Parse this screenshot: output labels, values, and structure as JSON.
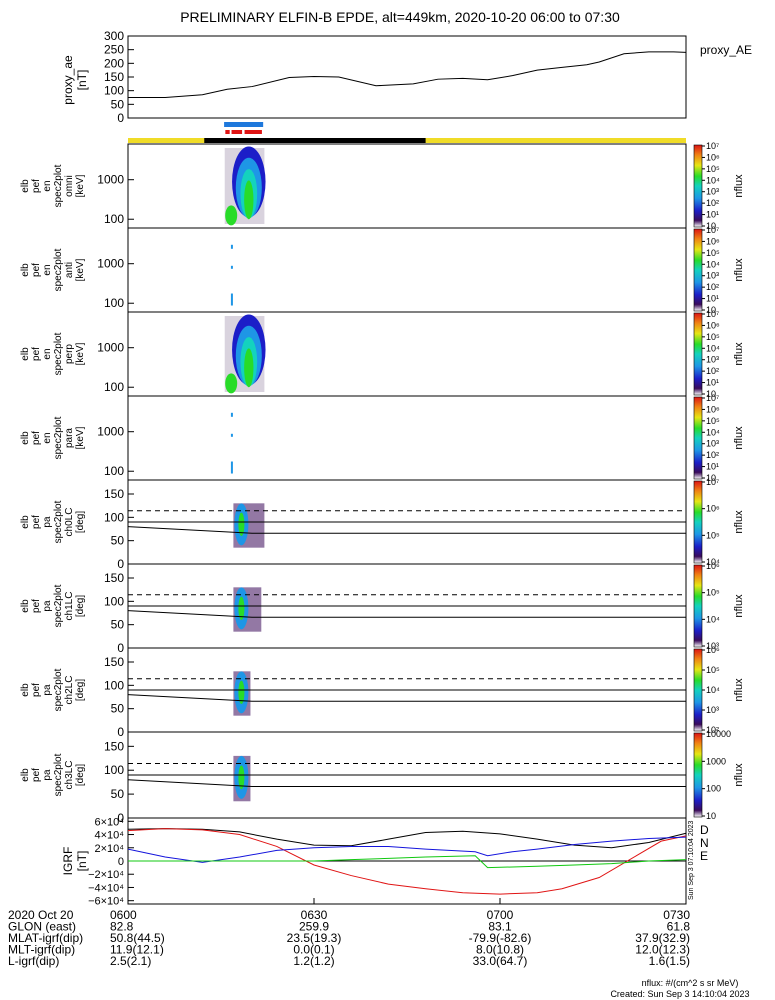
{
  "title": "PRELIMINARY ELFIN-B EPDE, alt=449km, 2020-10-20 06:00 to 07:30",
  "colors": {
    "band_yellow": "#f0dc28",
    "band_black": "#000000",
    "bar_blue": "#1e78dc",
    "bar_red": "#e01414",
    "grf_d": "#e01414",
    "grf_n": "#1414dc",
    "grf_e": "#10c810"
  },
  "chart_data": [
    {
      "type": "line",
      "name": "proxy_ae",
      "ylabel": [
        "proxy_ae",
        "[nT]"
      ],
      "legend": "proxy_AE",
      "ylim": [
        0,
        300
      ],
      "yticks": [
        "0",
        "50",
        "100",
        "150",
        "200",
        "250",
        "300"
      ],
      "x_minutes": [
        0,
        6,
        12,
        16,
        20,
        26,
        30,
        34,
        40,
        46,
        50,
        54,
        58,
        62,
        66,
        70,
        74,
        76,
        80,
        84,
        88,
        90
      ],
      "values": [
        75,
        75,
        85,
        105,
        115,
        148,
        152,
        150,
        118,
        125,
        142,
        145,
        140,
        155,
        175,
        185,
        195,
        205,
        235,
        242,
        242,
        240
      ]
    },
    {
      "type": "band",
      "name": "science-zone-bars",
      "blue_segment_min": [
        15.5,
        21.8
      ],
      "red_segments_min": [
        [
          15.7,
          16.4
        ],
        [
          16.7,
          18.4
        ],
        [
          18.8,
          21.6
        ]
      ],
      "black_segment_min": [
        12.3,
        48.0
      ]
    },
    {
      "type": "heatmap",
      "name": "en-omni",
      "ylabel": [
        "elb",
        "pef",
        "en",
        "spec2plot",
        "omni",
        "[keV]"
      ],
      "yscale": "log",
      "ylim": [
        60,
        8000
      ],
      "yticks": [
        "100",
        "1000"
      ],
      "time_window_min": [
        15.5,
        22.0
      ],
      "colorbar": {
        "label": "nflux",
        "ticks": [
          "10",
          "10¹",
          "10²",
          "10³",
          "10⁴",
          "10⁵",
          "10⁶",
          "10⁷"
        ]
      }
    },
    {
      "type": "heatmap",
      "name": "en-anti",
      "ylabel": [
        "elb",
        "pef",
        "en",
        "spec2plot",
        "anti",
        "[keV]"
      ],
      "yscale": "log",
      "ylim": [
        60,
        8000
      ],
      "yticks": [
        "100",
        "1000"
      ],
      "time_window_min": [
        16.0,
        17.0
      ],
      "colorbar": {
        "label": "nflux",
        "ticks": [
          "10",
          "10¹",
          "10²",
          "10³",
          "10⁴",
          "10⁵",
          "10⁶",
          "10⁷"
        ]
      }
    },
    {
      "type": "heatmap",
      "name": "en-perp",
      "ylabel": [
        "elb",
        "pef",
        "en",
        "spec2plot",
        "perp",
        "[keV]"
      ],
      "yscale": "log",
      "ylim": [
        60,
        8000
      ],
      "yticks": [
        "100",
        "1000"
      ],
      "time_window_min": [
        15.5,
        22.0
      ],
      "colorbar": {
        "label": "nflux",
        "ticks": [
          "10",
          "10¹",
          "10²",
          "10³",
          "10⁴",
          "10⁵",
          "10⁶",
          "10⁷"
        ]
      }
    },
    {
      "type": "heatmap",
      "name": "en-para",
      "ylabel": [
        "elb",
        "pef",
        "en",
        "spec2plot",
        "para",
        "[keV]"
      ],
      "yscale": "log",
      "ylim": [
        60,
        8000
      ],
      "yticks": [
        "100",
        "1000"
      ],
      "time_window_min": [
        16.0,
        17.0
      ],
      "colorbar": {
        "label": "nflux",
        "ticks": [
          "10",
          "10¹",
          "10²",
          "10³",
          "10⁴",
          "10⁵",
          "10⁶",
          "10⁷"
        ]
      }
    },
    {
      "type": "heatmap",
      "name": "pa-ch0",
      "ylabel": [
        "elb",
        "pef",
        "pa",
        "spec2plot",
        "ch0LC",
        "[deg]"
      ],
      "ylim": [
        0,
        180
      ],
      "yticks": [
        "0",
        "50",
        "100",
        "150"
      ],
      "dashed_line_deg": 114,
      "solid_line_deg": 90,
      "loss_cone_deg": [
        80,
        66
      ],
      "colorbar": {
        "label": "nflux",
        "ticks": [
          "10⁴",
          "10⁵",
          "10⁶",
          "10⁷"
        ]
      }
    },
    {
      "type": "heatmap",
      "name": "pa-ch1",
      "ylabel": [
        "elb",
        "pef",
        "pa",
        "spec2plot",
        "ch1LC",
        "[deg]"
      ],
      "ylim": [
        0,
        180
      ],
      "yticks": [
        "0",
        "50",
        "100",
        "150"
      ],
      "dashed_line_deg": 114,
      "solid_line_deg": 90,
      "loss_cone_deg": [
        80,
        66
      ],
      "colorbar": {
        "label": "nflux",
        "ticks": [
          "10³",
          "10⁴",
          "10⁵",
          "10⁶"
        ]
      }
    },
    {
      "type": "heatmap",
      "name": "pa-ch2",
      "ylabel": [
        "elb",
        "pef",
        "pa",
        "spec2plot",
        "ch2LC",
        "[deg]"
      ],
      "ylim": [
        0,
        180
      ],
      "yticks": [
        "0",
        "50",
        "100",
        "150"
      ],
      "dashed_line_deg": 114,
      "solid_line_deg": 90,
      "loss_cone_deg": [
        80,
        66
      ],
      "colorbar": {
        "label": "nflux",
        "ticks": [
          "10²",
          "10³",
          "10⁴",
          "10⁵",
          "10⁶"
        ]
      }
    },
    {
      "type": "heatmap",
      "name": "pa-ch3",
      "ylabel": [
        "elb",
        "pef",
        "pa",
        "spec2plot",
        "ch3LC",
        "[deg]"
      ],
      "ylim": [
        0,
        180
      ],
      "yticks": [
        "0",
        "50",
        "100",
        "150"
      ],
      "dashed_line_deg": 114,
      "solid_line_deg": 90,
      "loss_cone_deg": [
        80,
        66
      ],
      "colorbar": {
        "label": "nflux",
        "ticks": [
          "10",
          "100",
          "1000",
          "10000"
        ]
      }
    },
    {
      "type": "line",
      "name": "igrf",
      "ylabel": [
        "IGRF",
        "[nT]"
      ],
      "ylim": [
        -65000,
        65000
      ],
      "yticks": [
        "−6×10⁴",
        "−4×10⁴",
        "−2×10⁴",
        "0",
        "2×10⁴",
        "4×10⁴",
        "6×10⁴"
      ],
      "ytick_values": [
        -60000,
        -40000,
        -20000,
        0,
        20000,
        40000,
        60000
      ],
      "legend": [
        "D",
        "N",
        "E"
      ],
      "series": [
        {
          "name": "black",
          "x_minutes": [
            0,
            6,
            12,
            18,
            24,
            30,
            36,
            42,
            48,
            54,
            60,
            66,
            72,
            78,
            84,
            90
          ],
          "values": [
            48000,
            49000,
            48000,
            44000,
            33000,
            24000,
            23000,
            33000,
            43000,
            45000,
            41000,
            33000,
            24000,
            20000,
            28000,
            42000
          ]
        },
        {
          "name": "D",
          "x_minutes": [
            0,
            6,
            12,
            18,
            24,
            30,
            36,
            42,
            48,
            54,
            60,
            66,
            70,
            76,
            82,
            86,
            90
          ],
          "values": [
            46000,
            49000,
            47000,
            40000,
            22000,
            -6000,
            -22000,
            -35000,
            -42000,
            -48000,
            -50000,
            -48000,
            -42000,
            -25000,
            8000,
            30000,
            38000
          ]
        },
        {
          "name": "N",
          "x_minutes": [
            0,
            6,
            12,
            18,
            24,
            30,
            36,
            42,
            48,
            56,
            58,
            62,
            66,
            72,
            78,
            84,
            90
          ],
          "values": [
            18000,
            6000,
            -2000,
            6000,
            16000,
            20000,
            22000,
            22000,
            18000,
            14000,
            8000,
            14000,
            18000,
            25000,
            30000,
            34000,
            36000
          ]
        },
        {
          "name": "E",
          "x_minutes": [
            0,
            6,
            12,
            18,
            24,
            30,
            36,
            42,
            48,
            56,
            58,
            62,
            66,
            72,
            78,
            84,
            90
          ],
          "values": [
            0,
            0,
            0,
            0,
            0,
            0,
            2000,
            4000,
            6000,
            8000,
            -10000,
            -9000,
            -8000,
            -6000,
            -4000,
            0,
            2000
          ]
        }
      ],
      "side_stamp": "Sun Sep  3 07:10:04 2023"
    }
  ],
  "xaxis": {
    "tick_labels": [
      "0600",
      "0630",
      "0700",
      "0730"
    ],
    "rows": [
      {
        "label": "2020 Oct 20",
        "values": [
          "0600",
          "0630",
          "0700",
          "0730"
        ]
      },
      {
        "label": "GLON (east)",
        "values": [
          "82.8",
          "259.9",
          "83.1",
          "61.8"
        ]
      },
      {
        "label": "MLAT-igrf(dip)",
        "values": [
          "50.8(44.5)",
          "23.5(19.3)",
          "-79.9(-82.6)",
          "37.9(32.9)"
        ]
      },
      {
        "label": "MLT-igrf(dip)",
        "values": [
          "11.9(12.1)",
          "0.0(0.1)",
          "8.0(10.8)",
          "12.0(12.3)"
        ]
      },
      {
        "label": "L-igrf(dip)",
        "values": [
          "2.5(2.1)",
          "1.2(1.2)",
          "33.0(64.7)",
          "1.6(1.5)"
        ]
      }
    ]
  },
  "footer": {
    "units": "nflux: #/(cm^2 s sr MeV)",
    "created": "Created: Sun Sep  3 14:10:04 2023"
  }
}
